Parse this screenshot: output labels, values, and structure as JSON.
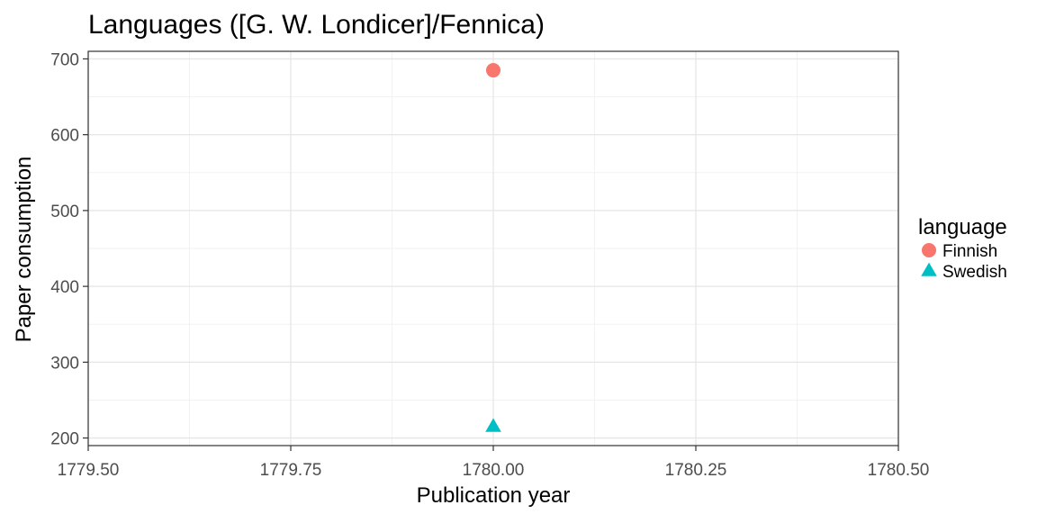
{
  "chart_data": {
    "type": "scatter",
    "title": "Languages ([G. W. Londicer]/Fennica)",
    "xlabel": "Publication year",
    "ylabel": "Paper consumption",
    "xlim": [
      1779.5,
      1780.5
    ],
    "ylim": [
      190,
      710
    ],
    "x_ticks": [
      1779.5,
      1779.75,
      1780.0,
      1780.25,
      1780.5
    ],
    "x_tick_labels": [
      "1779.50",
      "1779.75",
      "1780.00",
      "1780.25",
      "1780.50"
    ],
    "y_ticks": [
      200,
      300,
      400,
      500,
      600,
      700
    ],
    "y_tick_labels": [
      "200",
      "300",
      "400",
      "500",
      "600",
      "700"
    ],
    "x_minor_ticks": [
      1779.625,
      1779.875,
      1780.125,
      1780.375
    ],
    "y_minor_ticks": [
      250,
      350,
      450,
      550,
      650
    ],
    "grid": true,
    "legend": {
      "title": "language",
      "position": "right"
    },
    "series": [
      {
        "name": "Finnish",
        "shape": "circle",
        "color": "#F8766D",
        "x": [
          1780.0
        ],
        "y": [
          685
        ]
      },
      {
        "name": "Swedish",
        "shape": "triangle",
        "color": "#00BFC4",
        "x": [
          1780.0
        ],
        "y": [
          215
        ]
      }
    ]
  }
}
